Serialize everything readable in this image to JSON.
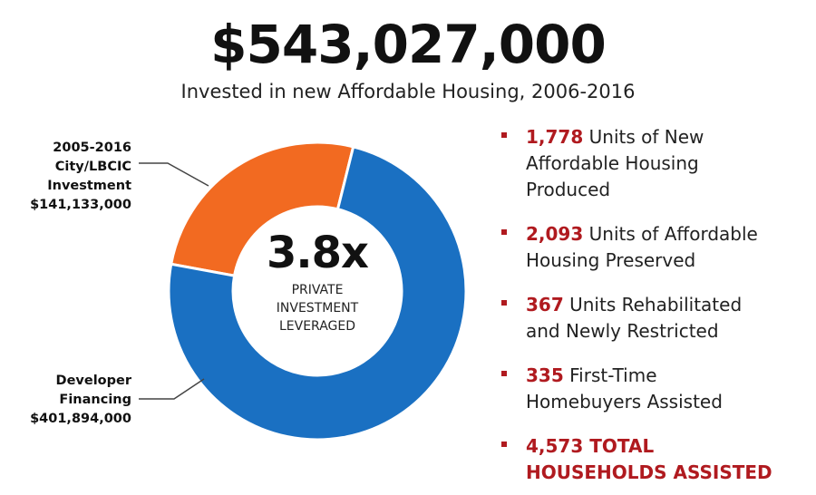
{
  "headline": "$543,027,000",
  "subheadline": "Invested in new Affordable Housing, 2006-2016",
  "chart_data": {
    "type": "pie",
    "style": "donut",
    "total": 543027000,
    "slices": [
      {
        "label_lines": [
          "2005-2016",
          "City/LBCIC",
          "Investment",
          "$141,133,000"
        ],
        "value": 141133000,
        "color": "#f26a21"
      },
      {
        "label_lines": [
          "Developer",
          "Financing",
          "$401,894,000"
        ],
        "value": 401894000,
        "color": "#1a70c2"
      }
    ],
    "center": {
      "value": "3.8x",
      "caption_lines": [
        "PRIVATE",
        "INVESTMENT",
        "LEVERAGED"
      ]
    }
  },
  "stats": [
    {
      "number": "1,778",
      "lines": [
        "Units of New",
        "Affordable Housing",
        "Produced"
      ]
    },
    {
      "number": "2,093",
      "lines": [
        "Units of Affordable",
        "Housing Preserved"
      ]
    },
    {
      "number": "367",
      "lines": [
        "Units Rehabilitated",
        "and Newly Restricted"
      ]
    },
    {
      "number": "335",
      "lines": [
        "First-Time",
        "Homebuyers Assisted"
      ]
    },
    {
      "number": "4,573",
      "lines": [
        "TOTAL",
        "HOUSEHOLDS ASSISTED"
      ]
    }
  ]
}
